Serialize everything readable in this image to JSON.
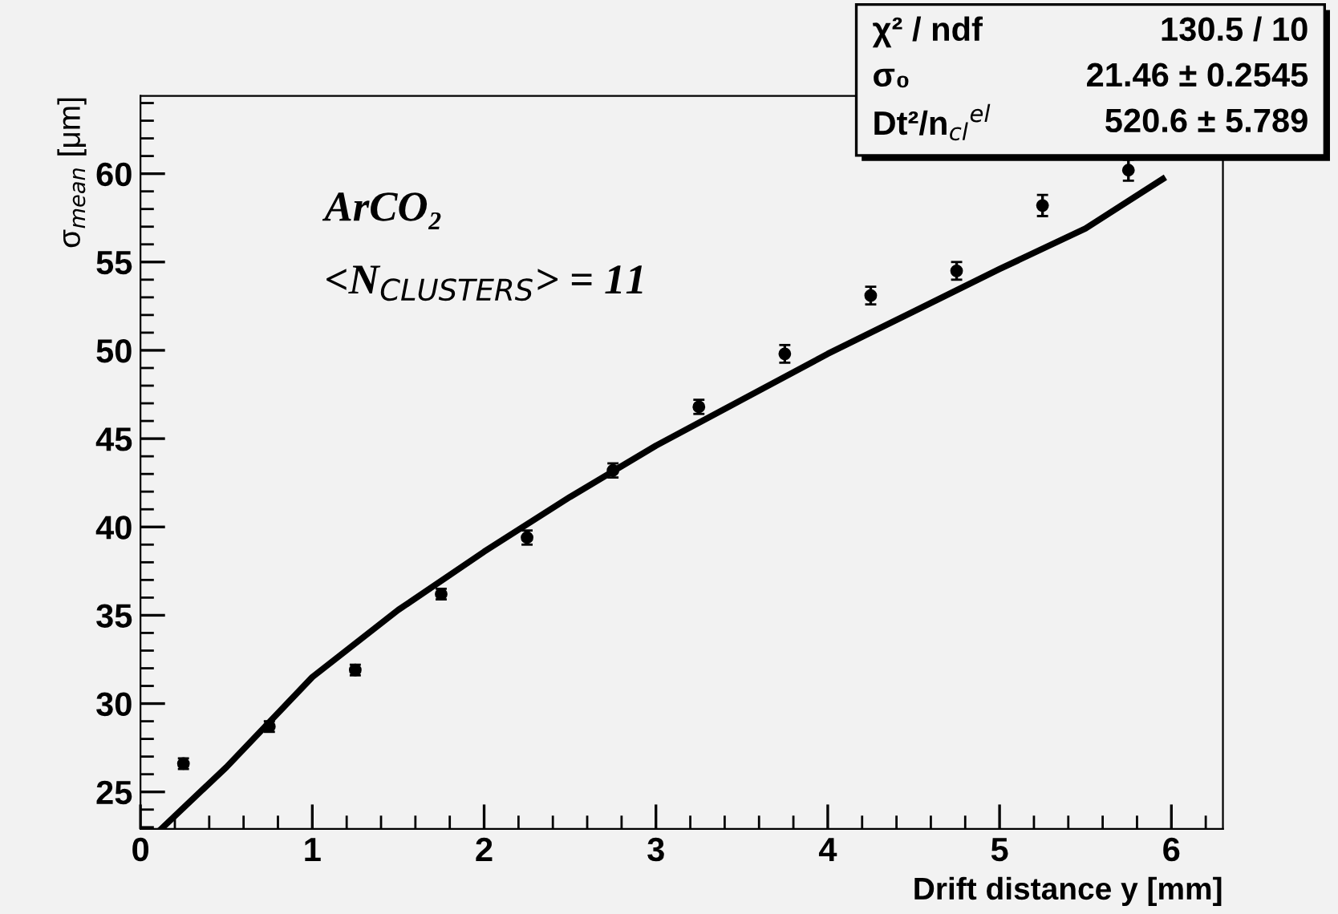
{
  "chart_data": {
    "type": "scatter",
    "xlabel": "Drift distance y [mm]",
    "ylabel": "σ$_{mean}$ [μm]",
    "xlim": [
      0,
      6.3
    ],
    "xticks": [
      0,
      1,
      2,
      3,
      4,
      5,
      6
    ],
    "ylim": [
      22.9,
      64.4
    ],
    "yticks": [
      25,
      30,
      35,
      40,
      45,
      50,
      55,
      60
    ],
    "grid": false,
    "legend": false,
    "marker": "circle",
    "annotations": [
      "ArCO₂",
      "<N$_{CLUSTERS}$> = 11",
      "χ² / ndf",
      "130.5 / 10",
      "σ₀",
      "21.46 ± 0.2545",
      "Dt²/n$_{cl}$$^{el}$",
      "520.6 ± 5.789"
    ],
    "series": [
      {
        "color": "#000000",
        "x": [
          0.25,
          0.75,
          1.25,
          1.75,
          2.25,
          2.75,
          3.25,
          3.75,
          4.25,
          4.75,
          5.25,
          5.75
        ],
        "values": [
          26.6,
          28.7,
          31.9,
          36.2,
          39.4,
          43.2,
          46.8,
          49.8,
          53.1,
          54.5,
          58.2,
          60.2
        ],
        "errors": [
          0.3,
          0.3,
          0.3,
          0.3,
          0.4,
          0.4,
          0.4,
          0.5,
          0.5,
          0.5,
          0.6,
          0.6
        ]
      },
      {
        "type": "line",
        "color": "#000000",
        "line_style": "solid",
        "marker": "none",
        "x": [
          0.12,
          0.5,
          1,
          1.5,
          2,
          2.5,
          3,
          3.5,
          4,
          4.5,
          5,
          5.5,
          5.95
        ],
        "values": [
          22.9,
          26.4,
          31.5,
          35.3,
          38.6,
          41.7,
          44.6,
          47.2,
          49.8,
          52.2,
          54.6,
          56.9,
          59.7
        ]
      }
    ]
  }
}
